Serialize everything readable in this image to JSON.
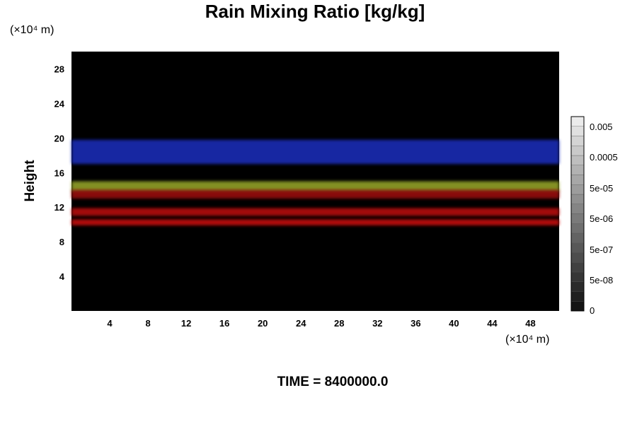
{
  "chart_data": {
    "type": "heatmap",
    "title": "Rain Mixing Ratio [kg/kg]",
    "ylabel": "Height",
    "y_unit": "(×10⁴ m)",
    "x_unit": "(×10⁴ m)",
    "xlim": [
      0,
      51
    ],
    "ylim": [
      0,
      30
    ],
    "xticks": [
      4,
      8,
      12,
      16,
      20,
      24,
      28,
      32,
      36,
      40,
      44,
      48
    ],
    "yticks": [
      4,
      8,
      12,
      16,
      20,
      24,
      28
    ],
    "colorbar": {
      "ticks": [
        "0.005",
        "0.0005",
        "5e-05",
        "5e-06",
        "5e-07",
        "5e-08",
        "0"
      ]
    },
    "bands": [
      {
        "color": "#1f2fbf",
        "y_bottom": 17.0,
        "y_top": 19.8
      },
      {
        "color": "#9aaa2a",
        "y_bottom": 13.8,
        "y_top": 15.0
      },
      {
        "color": "#a01010",
        "y_bottom": 13.0,
        "y_top": 14.0
      },
      {
        "color": "#c01010",
        "y_bottom": 11.0,
        "y_top": 11.9
      },
      {
        "color": "#d01010",
        "y_bottom": 9.9,
        "y_top": 10.6
      }
    ],
    "background_color": "#000000"
  },
  "footer": {
    "time_label": "TIME = 8400000.0"
  }
}
